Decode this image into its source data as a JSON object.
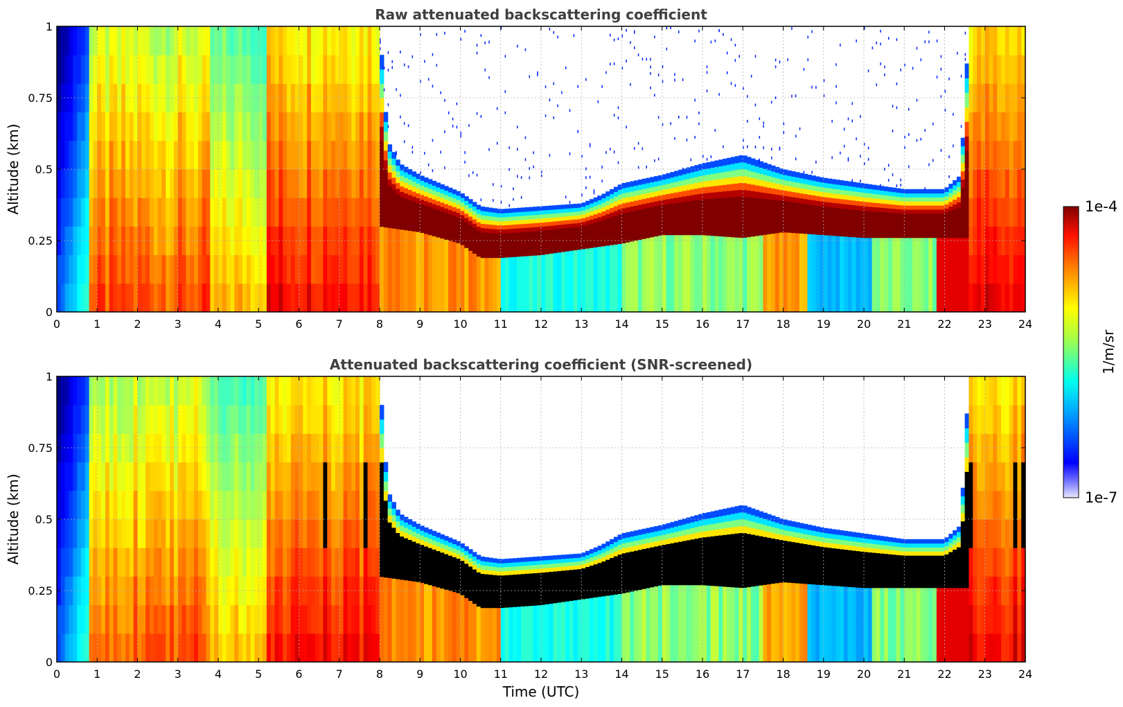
{
  "chart_data": [
    {
      "type": "heatmap",
      "title": "Raw attenuated backscattering coefficient",
      "xlabel": "",
      "ylabel": "Altitude (km)",
      "xlim": [
        0,
        24
      ],
      "ylim": [
        0,
        1
      ],
      "x_ticks": [
        "0",
        "1",
        "2",
        "3",
        "4",
        "5",
        "6",
        "7",
        "8",
        "9",
        "10",
        "11",
        "12",
        "13",
        "14",
        "15",
        "16",
        "17",
        "18",
        "19",
        "20",
        "21",
        "22",
        "23",
        "24"
      ],
      "y_ticks": [
        "0",
        "0.25",
        "0.5",
        "0.75",
        "1"
      ],
      "grid": true,
      "screened": false,
      "colorscale": "log10 jet, 1e-7 to 1e-4 1/m/sr",
      "layer_top_km": [
        [
          0.0,
          1.0
        ],
        [
          8.0,
          1.0
        ],
        [
          8.2,
          0.6
        ],
        [
          8.5,
          0.52
        ],
        [
          9.0,
          0.48
        ],
        [
          10.0,
          0.42
        ],
        [
          10.5,
          0.37
        ],
        [
          11.0,
          0.36
        ],
        [
          12.0,
          0.37
        ],
        [
          13.0,
          0.38
        ],
        [
          13.5,
          0.41
        ],
        [
          14.0,
          0.45
        ],
        [
          15.0,
          0.48
        ],
        [
          16.0,
          0.52
        ],
        [
          17.0,
          0.55
        ],
        [
          18.0,
          0.5
        ],
        [
          19.0,
          0.47
        ],
        [
          20.0,
          0.45
        ],
        [
          21.0,
          0.43
        ],
        [
          22.0,
          0.43
        ],
        [
          22.4,
          0.48
        ],
        [
          22.6,
          1.0
        ],
        [
          24.0,
          1.0
        ]
      ],
      "layer_base_km": [
        [
          8.0,
          0.3
        ],
        [
          9.0,
          0.28
        ],
        [
          10.0,
          0.24
        ],
        [
          10.5,
          0.19
        ],
        [
          11.0,
          0.19
        ],
        [
          12.0,
          0.2
        ],
        [
          13.0,
          0.22
        ],
        [
          14.0,
          0.24
        ],
        [
          15.0,
          0.27
        ],
        [
          16.0,
          0.27
        ],
        [
          17.0,
          0.26
        ],
        [
          18.0,
          0.28
        ],
        [
          19.0,
          0.27
        ],
        [
          20.0,
          0.26
        ],
        [
          21.0,
          0.26
        ],
        [
          22.0,
          0.26
        ]
      ]
    },
    {
      "type": "heatmap",
      "title": "Attenuated backscattering coefficient (SNR-screened)",
      "xlabel": "Time (UTC)",
      "ylabel": "Altitude (km)",
      "xlim": [
        0,
        24
      ],
      "ylim": [
        0,
        1
      ],
      "x_ticks": [
        "0",
        "1",
        "2",
        "3",
        "4",
        "5",
        "6",
        "7",
        "8",
        "9",
        "10",
        "11",
        "12",
        "13",
        "14",
        "15",
        "16",
        "17",
        "18",
        "19",
        "20",
        "21",
        "22",
        "23",
        "24"
      ],
      "y_ticks": [
        "0",
        "0.25",
        "0.5",
        "0.75",
        "1"
      ],
      "grid": true,
      "screened": true,
      "colorscale": "log10 jet, 1e-7 to 1e-4 1/m/sr; saturated values shown black",
      "layer_top_km": [
        [
          0.0,
          1.0
        ],
        [
          8.0,
          1.0
        ],
        [
          8.2,
          0.6
        ],
        [
          8.5,
          0.52
        ],
        [
          9.0,
          0.48
        ],
        [
          10.0,
          0.42
        ],
        [
          10.5,
          0.37
        ],
        [
          11.0,
          0.36
        ],
        [
          12.0,
          0.37
        ],
        [
          13.0,
          0.38
        ],
        [
          13.5,
          0.41
        ],
        [
          14.0,
          0.45
        ],
        [
          15.0,
          0.48
        ],
        [
          16.0,
          0.52
        ],
        [
          17.0,
          0.55
        ],
        [
          18.0,
          0.5
        ],
        [
          19.0,
          0.47
        ],
        [
          20.0,
          0.45
        ],
        [
          21.0,
          0.43
        ],
        [
          22.0,
          0.43
        ],
        [
          22.4,
          0.48
        ],
        [
          22.6,
          1.0
        ],
        [
          24.0,
          1.0
        ]
      ],
      "layer_base_km": [
        [
          8.0,
          0.3
        ],
        [
          9.0,
          0.28
        ],
        [
          10.0,
          0.24
        ],
        [
          10.5,
          0.19
        ],
        [
          11.0,
          0.19
        ],
        [
          12.0,
          0.2
        ],
        [
          13.0,
          0.22
        ],
        [
          14.0,
          0.24
        ],
        [
          15.0,
          0.27
        ],
        [
          16.0,
          0.27
        ],
        [
          17.0,
          0.26
        ],
        [
          18.0,
          0.28
        ],
        [
          19.0,
          0.27
        ],
        [
          20.0,
          0.26
        ],
        [
          21.0,
          0.26
        ],
        [
          22.0,
          0.26
        ]
      ]
    }
  ],
  "colorbar": {
    "max_label": "1e-4",
    "min_label": "1e-7",
    "label": "1/m/sr"
  }
}
